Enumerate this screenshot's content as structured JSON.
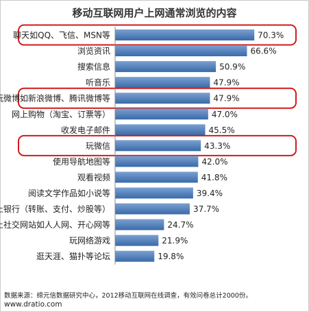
{
  "chart_data": {
    "type": "bar",
    "orientation": "horizontal",
    "title": "移动互联网用户上网通常浏览的内容",
    "categories": [
      "聊天如QQ、飞信、MSN等",
      "浏览资讯",
      "搜索信息",
      "听音乐",
      "玩微博如新浪微博、腾讯微博等",
      "网上购物（淘宝、订票等）",
      "收发电子邮件",
      "玩微信",
      "使用导航地图等",
      "观看视频",
      "阅读文学作品如小说等",
      "网上银行（转账、支付、炒股等）",
      "上社交网站如人人网、开心网等",
      "玩网络游戏",
      "逛天涯、猫扑等论坛"
    ],
    "values": [
      70.3,
      66.6,
      50.9,
      47.9,
      47.9,
      47.0,
      45.5,
      43.3,
      42.0,
      41.8,
      39.4,
      37.7,
      24.7,
      21.9,
      19.8
    ],
    "value_labels": [
      "70.3%",
      "66.6%",
      "50.9%",
      "47.9%",
      "47.9%",
      "47.0%",
      "45.5%",
      "43.3%",
      "42.0%",
      "41.8%",
      "39.4%",
      "37.7%",
      "24.7%",
      "21.9%",
      "19.8%"
    ],
    "highlighted": [
      "聊天如QQ、飞信、MSN等",
      "玩微博如新浪微博、腾讯微博等",
      "玩微信"
    ],
    "xlim": [
      0,
      100
    ],
    "grid": false,
    "legend": "none"
  },
  "footer": {
    "source": "数据来源：缔元信数据研究中心，2012移动互联网在线调查，有效问卷总计2000份。",
    "site": "www.dratio.com"
  },
  "colors": {
    "bar_top": "#7ba0d2",
    "bar_bottom": "#3a6aa8",
    "highlight": "#d11a1a",
    "text": "#222222"
  }
}
